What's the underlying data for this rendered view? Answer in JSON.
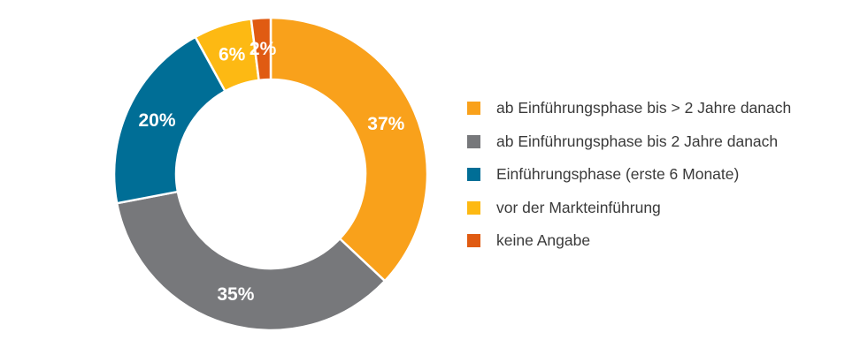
{
  "chart_data": {
    "type": "pie",
    "donut": true,
    "series": [
      {
        "name": "ab Einführungsphase bis > 2 Jahre danach",
        "value": 37,
        "label": "37%",
        "color": "#f9a11b"
      },
      {
        "name": "ab Einführungsphase bis 2 Jahre danach",
        "value": 35,
        "label": "35%",
        "color": "#77787b"
      },
      {
        "name": "Einführungsphase (erste 6 Monate)",
        "value": 20,
        "label": "20%",
        "color": "#006e96"
      },
      {
        "name": "vor der Markteinführung",
        "value": 6,
        "label": "6%",
        "color": "#fdb913"
      },
      {
        "name": "keine Angabe",
        "value": 2,
        "label": "2%",
        "color": "#e05b12"
      }
    ],
    "legend_position": "right"
  }
}
